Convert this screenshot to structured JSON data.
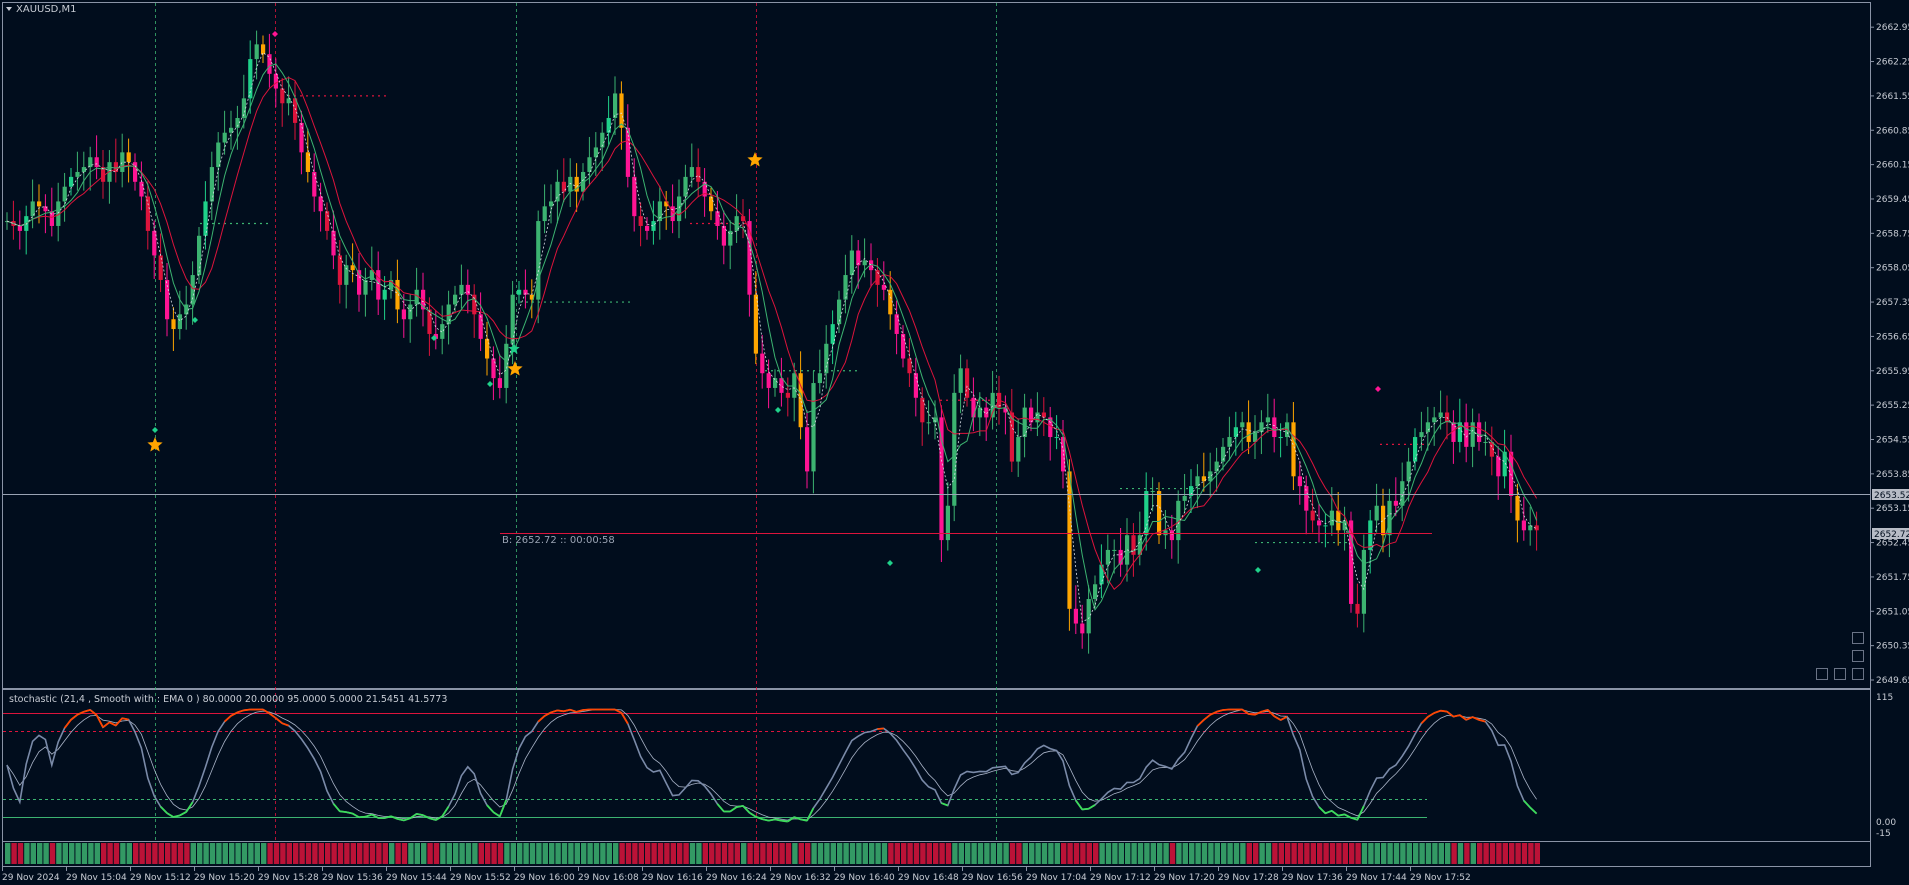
{
  "symbol_label": "XAUUSD,M1",
  "indicator_label": "stochastic (21,4 , Smooth with : EMA   0 ) 80.0000 20.0000 95.0000 5.0000 21.5451 41.5773",
  "bid_label": "B: 2652.72 :: 00:00:58",
  "colors": {
    "background": "#010d1d",
    "bull": "#1fd18a",
    "bull_alt": "#3cb371",
    "bear": "#dc143c",
    "bear_alt": "#ff1493",
    "neutral": "#ffa500",
    "ma_fast": "#3cb371",
    "ma_slow": "#dc143c",
    "stoch_main": "#7a8aa8",
    "stoch_over": "#ff4500",
    "stoch_under": "#3cdc5a"
  },
  "price_axis": {
    "labels": [
      "2662.95",
      "2662.25",
      "2661.55",
      "2660.85",
      "2660.15",
      "2659.45",
      "2658.75",
      "2658.05",
      "2657.35",
      "2656.65",
      "2655.95",
      "2655.25",
      "2654.55",
      "2653.85",
      "2653.15",
      "2652.45",
      "2651.75",
      "2651.05",
      "2650.35",
      "2649.65"
    ],
    "current_price": "2653.52",
    "bid_price": "2652.72"
  },
  "indicator_axis": {
    "labels": [
      "115",
      "0.00",
      "-15"
    ]
  },
  "time_axis": {
    "labels": [
      "29 Nov 2024",
      "29 Nov 15:04",
      "29 Nov 15:12",
      "29 Nov 15:20",
      "29 Nov 15:28",
      "29 Nov 15:36",
      "29 Nov 15:44",
      "29 Nov 15:52",
      "29 Nov 16:00",
      "29 Nov 16:08",
      "29 Nov 16:16",
      "29 Nov 16:24",
      "29 Nov 16:32",
      "29 Nov 16:40",
      "29 Nov 16:48",
      "29 Nov 16:56",
      "29 Nov 17:04",
      "29 Nov 17:12",
      "29 Nov 17:20",
      "29 Nov 17:28",
      "29 Nov 17:36",
      "29 Nov 17:44",
      "29 Nov 17:52"
    ]
  },
  "chart_data": {
    "type": "candlestick",
    "ylim": [
      2649.65,
      2663.3
    ],
    "closes": [
      2659.0,
      2658.9,
      2658.8,
      2659.1,
      2659.4,
      2659.3,
      2659.2,
      2658.9,
      2659.4,
      2659.7,
      2659.9,
      2660.0,
      2660.1,
      2660.3,
      2660.1,
      2659.8,
      2660.2,
      2660.0,
      2660.4,
      2660.2,
      2659.8,
      2659.5,
      2658.8,
      2658.3,
      2657.8,
      2657.0,
      2656.8,
      2657.1,
      2657.3,
      2657.9,
      2658.7,
      2659.4,
      2660.1,
      2660.6,
      2660.8,
      2660.9,
      2661.1,
      2661.5,
      2662.3,
      2662.6,
      2662.4,
      2662.0,
      2661.7,
      2661.4,
      2661.5,
      2661.0,
      2660.4,
      2660.0,
      2659.5,
      2659.2,
      2658.8,
      2658.3,
      2657.7,
      2658.1,
      2658.0,
      2657.5,
      2657.8,
      2658.0,
      2657.4,
      2657.6,
      2657.8,
      2657.2,
      2657.0,
      2657.3,
      2657.6,
      2657.2,
      2656.7,
      2656.6,
      2656.9,
      2657.3,
      2657.5,
      2657.7,
      2657.5,
      2657.1,
      2656.6,
      2656.2,
      2655.8,
      2655.6,
      2656.5,
      2657.5,
      2657.6,
      2657.5,
      2657.4,
      2659.0,
      2659.3,
      2659.4,
      2659.8,
      2659.6,
      2659.9,
      2659.6,
      2660.0,
      2660.3,
      2660.5,
      2660.8,
      2661.1,
      2661.6,
      2660.9,
      2659.9,
      2659.1,
      2658.9,
      2658.8,
      2659.0,
      2659.4,
      2659.3,
      2659.0,
      2659.5,
      2659.9,
      2660.1,
      2659.8,
      2659.5,
      2659.2,
      2658.9,
      2658.5,
      2658.8,
      2659.1,
      2659.0,
      2657.5,
      2656.3,
      2655.9,
      2655.6,
      2655.8,
      2655.5,
      2655.4,
      2655.9,
      2654.8,
      2653.9,
      2655.7,
      2655.9,
      2656.5,
      2656.9,
      2657.4,
      2657.9,
      2658.4,
      2658.1,
      2658.2,
      2658.0,
      2657.7,
      2657.6,
      2657.1,
      2656.7,
      2656.2,
      2655.9,
      2655.4,
      2654.9,
      2654.9,
      2655.0,
      2652.5,
      2653.2,
      2655.5,
      2656.0,
      2655.4,
      2655.0,
      2655.2,
      2655.0,
      2655.5,
      2655.2,
      2655.1,
      2654.1,
      2654.6,
      2655.2,
      2654.9,
      2655.1,
      2655.0,
      2654.6,
      2654.6,
      2653.9,
      2651.1,
      2650.8,
      2650.6,
      2651.3,
      2651.6,
      2652.0,
      2652.3,
      2652.3,
      2652.0,
      2652.6,
      2652.2,
      2652.6,
      2653.5,
      2653.5,
      2652.6,
      2652.7,
      2652.5,
      2653.3,
      2653.4,
      2653.6,
      2653.8,
      2653.7,
      2653.9,
      2654.1,
      2654.4,
      2654.6,
      2654.8,
      2654.9,
      2654.5,
      2654.7,
      2654.9,
      2655.0,
      2654.6,
      2654.6,
      2654.9,
      2653.8,
      2653.6,
      2653.1,
      2652.9,
      2652.8,
      2652.8,
      2653.1,
      2652.7,
      2652.9,
      2651.2,
      2651.0,
      2652.3,
      2652.9,
      2653.2,
      2652.6,
      2653.3,
      2653.2,
      2653.7,
      2654.1,
      2654.6,
      2654.7,
      2654.9,
      2655.0,
      2655.1,
      2654.9,
      2654.5,
      2654.9,
      2654.4,
      2654.9,
      2654.5,
      2654.5,
      2654.2,
      2653.8,
      2654.3,
      2653.4,
      2652.9,
      2652.7,
      2652.8,
      2652.7
    ]
  }
}
